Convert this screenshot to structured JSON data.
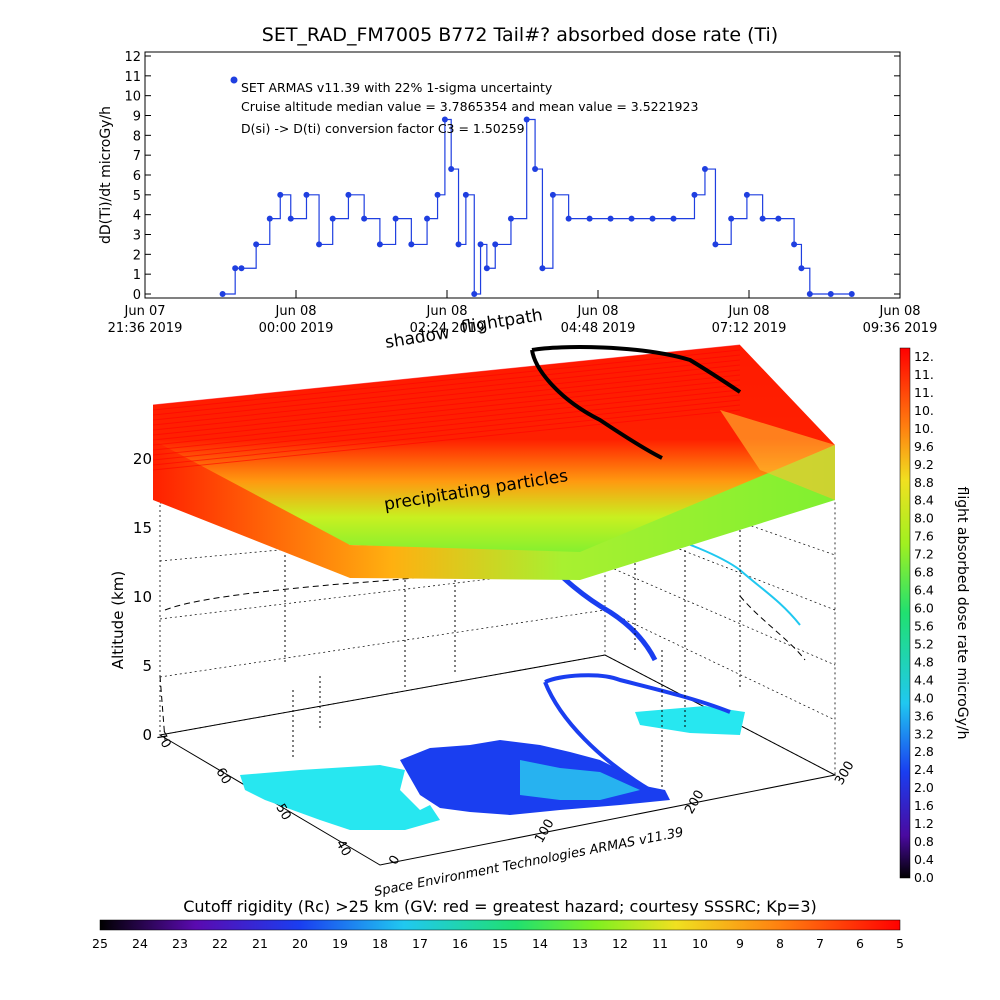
{
  "colors": {
    "series": "#1f3fe0",
    "hazard_red": "#ff1a00",
    "land": "#27e7f0",
    "black": "#000000"
  },
  "chart_data": [
    {
      "type": "line",
      "title": "SET_RAD_FM7005  B772 Tail#? absorbed dose rate (Ti)",
      "ylabel": "dD(Ti)/dt microGy/h",
      "xlabel": "",
      "ylim": [
        0,
        12
      ],
      "xlim": [
        "2019-06-07 21:36",
        "2019-06-08 09:36"
      ],
      "y_ticks": [
        "0",
        "1",
        "2",
        "3",
        "4",
        "5",
        "6",
        "7",
        "8",
        "9",
        "10",
        "11",
        "12"
      ],
      "x_ticks": [
        {
          "line1": "Jun 07",
          "line2": "21:36 2019"
        },
        {
          "line1": "Jun 08",
          "line2": "00:00 2019"
        },
        {
          "line1": "Jun 08",
          "line2": "02:24 2019"
        },
        {
          "line1": "Jun 08",
          "line2": "04:48 2019"
        },
        {
          "line1": "Jun 08",
          "line2": "07:12 2019"
        },
        {
          "line1": "Jun 08",
          "line2": "09:36 2019"
        }
      ],
      "legend": {
        "entry": "SET ARMAS v11.39 with 22% 1-sigma uncertainty",
        "note1": "Cruise altitude median value = 3.7865354 and mean value = 3.5221923",
        "note2": "D(si) -> D(ti) conversion factor C3 = 1.50259",
        "placement": "top-left"
      },
      "series": [
        {
          "name": "SET ARMAS v11.39 with 22% 1-sigma uncertainty",
          "x": [
            "2019-06-07 22:50",
            "2019-06-07 23:02",
            "2019-06-07 23:08",
            "2019-06-07 23:22",
            "2019-06-07 23:35",
            "2019-06-07 23:45",
            "2019-06-07 23:55",
            "2019-06-08 00:10",
            "2019-06-08 00:22",
            "2019-06-08 00:35",
            "2019-06-08 00:50",
            "2019-06-08 01:05",
            "2019-06-08 01:20",
            "2019-06-08 01:35",
            "2019-06-08 01:50",
            "2019-06-08 02:05",
            "2019-06-08 02:15",
            "2019-06-08 02:22",
            "2019-06-08 02:28",
            "2019-06-08 02:35",
            "2019-06-08 02:42",
            "2019-06-08 02:50",
            "2019-06-08 02:56",
            "2019-06-08 03:02",
            "2019-06-08 03:10",
            "2019-06-08 03:25",
            "2019-06-08 03:40",
            "2019-06-08 03:48",
            "2019-06-08 03:55",
            "2019-06-08 04:05",
            "2019-06-08 04:20",
            "2019-06-08 04:40",
            "2019-06-08 05:00",
            "2019-06-08 05:20",
            "2019-06-08 05:40",
            "2019-06-08 06:00",
            "2019-06-08 06:20",
            "2019-06-08 06:30",
            "2019-06-08 06:40",
            "2019-06-08 06:55",
            "2019-06-08 07:10",
            "2019-06-08 07:25",
            "2019-06-08 07:40",
            "2019-06-08 07:55",
            "2019-06-08 08:02",
            "2019-06-08 08:10",
            "2019-06-08 08:30",
            "2019-06-08 08:50"
          ],
          "values": [
            0,
            1.3,
            1.3,
            2.5,
            3.8,
            5.0,
            3.8,
            5.0,
            2.5,
            3.8,
            5.0,
            3.8,
            2.5,
            3.8,
            2.5,
            3.8,
            5.0,
            8.8,
            6.3,
            2.5,
            5.0,
            0,
            2.5,
            1.3,
            2.5,
            3.8,
            8.8,
            6.3,
            1.3,
            5.0,
            3.8,
            3.8,
            3.8,
            3.8,
            3.8,
            3.8,
            5.0,
            6.3,
            2.5,
            3.8,
            5.0,
            3.8,
            3.8,
            2.5,
            1.3,
            0,
            0,
            0
          ]
        }
      ]
    },
    {
      "type": "heatmap",
      "zlabel": "Altitude (km)",
      "z_ticks": [
        "0",
        "5",
        "10",
        "15",
        "20"
      ],
      "lat_ticks": [
        "40",
        "50",
        "60",
        "70"
      ],
      "lon_ticks": [
        "0",
        "100",
        "200",
        "300"
      ],
      "annotations": [
        "shadow",
        "flightpath",
        "precipitating particles"
      ],
      "credit": "Space Environment Technologies ARMAS v11.39",
      "colorbar_title": "flight absorbed dose rate microGy/h",
      "colorbar_ticks": [
        "12.",
        "11.",
        "11.",
        "10.",
        "10.",
        "9.6",
        "9.2",
        "8.8",
        "8.4",
        "8.0",
        "7.6",
        "7.2",
        "6.8",
        "6.4",
        "6.0",
        "5.6",
        "5.2",
        "4.8",
        "4.4",
        "4.0",
        "3.6",
        "3.2",
        "2.8",
        "2.4",
        "2.0",
        "1.6",
        "1.2",
        "0.8",
        "0.4",
        "0.0"
      ],
      "rigidity_title": "Cutoff rigidity (Rc) >25 km (GV: red = greatest hazard; courtesy SSSRC; Kp=3)",
      "rigidity_ticks": [
        "25",
        "24",
        "23",
        "22",
        "21",
        "20",
        "19",
        "18",
        "17",
        "16",
        "15",
        "14",
        "13",
        "12",
        "11",
        "10",
        "9",
        "8",
        "7",
        "6",
        "5"
      ]
    }
  ]
}
